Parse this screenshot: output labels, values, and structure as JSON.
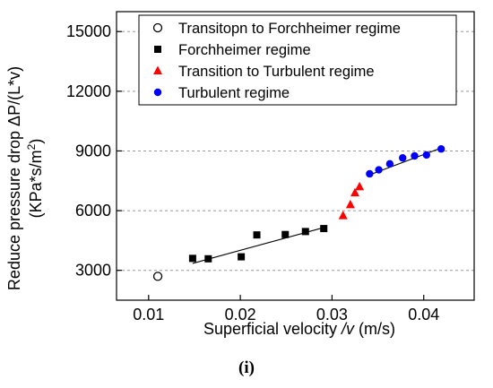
{
  "chart_data": {
    "type": "scatter",
    "xlabel_main": "Superficial velocity ",
    "xlabel_italic": "/v",
    "xlabel_unit": " (m/s)",
    "ylabel_line1": "Reduce pressure drop ΔP/(L*v)",
    "ylabel_line2_main": "(KPa*s/m",
    "ylabel_line2_sup": "2",
    "ylabel_line2_end": ")",
    "xlim": [
      0.0065,
      0.0455
    ],
    "ylim": [
      1500,
      16000
    ],
    "xticks": [
      0.01,
      0.02,
      0.03,
      0.04
    ],
    "xtick_labels": [
      "0.01",
      "0.02",
      "0.03",
      "0.04"
    ],
    "yticks": [
      3000,
      6000,
      9000,
      12000,
      15000
    ],
    "ytick_labels": [
      "3000",
      "6000",
      "9000",
      "12000",
      "15000"
    ],
    "grid": "horizontal dashed",
    "legend_position": "top",
    "series": [
      {
        "name": "Transitopn to Forchheimer regime",
        "marker": "open-circle",
        "color": "#000000",
        "x": [
          0.011
        ],
        "y": [
          2700
        ]
      },
      {
        "name": "Forchheimer regime",
        "marker": "square",
        "color": "#000000",
        "x": [
          0.0148,
          0.0165,
          0.0201,
          0.0218,
          0.0249,
          0.0271,
          0.0291
        ],
        "y": [
          3600,
          3580,
          3680,
          4780,
          4800,
          4950,
          5100
        ]
      },
      {
        "name": "Transition to Turbulent regime",
        "marker": "triangle",
        "color": "#ff0000",
        "x": [
          0.0312,
          0.032,
          0.0325,
          0.033
        ],
        "y": [
          5750,
          6300,
          6900,
          7200
        ]
      },
      {
        "name": "Turbulent regime",
        "marker": "circle",
        "color": "#0000ff",
        "x": [
          0.0341,
          0.0351,
          0.0363,
          0.0377,
          0.039,
          0.0403,
          0.0419
        ],
        "y": [
          7850,
          8050,
          8350,
          8650,
          8750,
          8800,
          9100
        ]
      }
    ],
    "fit_lines": [
      {
        "x": [
          0.0148,
          0.0291
        ],
        "y": [
          3350,
          5150
        ],
        "color": "#000000"
      },
      {
        "x": [
          0.0341,
          0.0419
        ],
        "y": [
          7800,
          9150
        ],
        "color": "#000000"
      }
    ]
  },
  "caption": "(i)"
}
